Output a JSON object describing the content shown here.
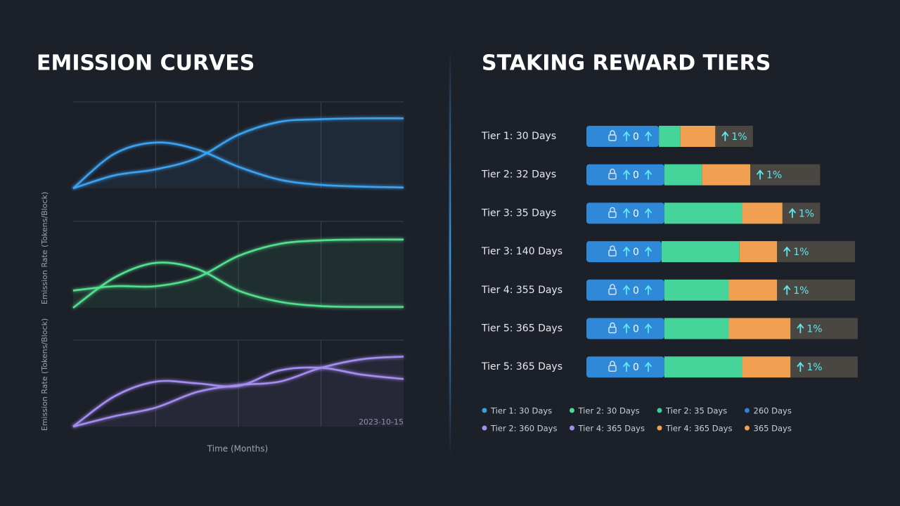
{
  "chart_data": [
    {
      "type": "line",
      "title": "EMISSION CURVES",
      "y_labels": [
        "Emission Rate (Tokens/Block)",
        "Emission Rate (Tokens/Block)"
      ],
      "x_label": "Time (Months)",
      "annotation": "2023-10-15",
      "x": [
        0,
        0.5,
        1,
        1.5,
        2,
        2.5,
        3,
        3.5,
        4
      ],
      "xlim": [
        0,
        4
      ],
      "xticks": [
        1,
        2,
        3
      ],
      "ylim": [
        0,
        1
      ],
      "grid": true,
      "panels": [
        {
          "series": [
            {
              "color": "#3aa2f0",
              "values": [
                0,
                0.4,
                0.53,
                0.45,
                0.25,
                0.1,
                0.04,
                0.02,
                0.01
              ]
            },
            {
              "color": "#3aa2f0",
              "values": [
                0,
                0.15,
                0.22,
                0.35,
                0.62,
                0.77,
                0.8,
                0.81,
                0.81
              ]
            }
          ]
        },
        {
          "series": [
            {
              "color": "#52e08e",
              "values": [
                0,
                0.35,
                0.52,
                0.45,
                0.2,
                0.07,
                0.02,
                0.01,
                0.01
              ]
            },
            {
              "color": "#52e08e",
              "values": [
                0.2,
                0.25,
                0.25,
                0.35,
                0.6,
                0.74,
                0.78,
                0.79,
                0.79
              ]
            }
          ]
        },
        {
          "series": [
            {
              "color": "#a58cf0",
              "values": [
                0,
                0.35,
                0.52,
                0.5,
                0.47,
                0.65,
                0.68,
                0.6,
                0.55
              ]
            },
            {
              "color": "#a58cf0",
              "values": [
                0,
                0.12,
                0.22,
                0.4,
                0.48,
                0.52,
                0.68,
                0.78,
                0.81
              ]
            }
          ]
        }
      ]
    },
    {
      "type": "bar",
      "title": "STAKING REWARD TIERS",
      "categories": [
        "Tier 1: 30 Days",
        "Tier 2: 32 Days",
        "Tier 3: 35 Days",
        "Tier 3: 140 Days",
        "Tier 4: 355 Days",
        "Tier 5: 365 Days",
        "Tier 5: 365 Days"
      ],
      "xlim": [
        0,
        100
      ],
      "series": [
        {
          "color": "#2f88d8",
          "values": [
            27,
            29,
            29,
            28,
            29,
            29,
            29
          ]
        },
        {
          "color": "#45d49a",
          "values": [
            8,
            14,
            29,
            29,
            24,
            24,
            29
          ]
        },
        {
          "color": "#f0a050",
          "values": [
            13,
            18,
            15,
            14,
            18,
            23,
            18
          ]
        },
        {
          "color": "#4a4642",
          "values": [
            14,
            26,
            14,
            29,
            29,
            25,
            25
          ]
        }
      ],
      "inner_labels": [
        "0",
        "0",
        "0",
        "0",
        "0",
        "0",
        "0"
      ],
      "outer_labels": [
        "1%",
        "1%",
        "1%",
        "1%",
        "1%",
        "1%",
        "1%"
      ],
      "legend": [
        {
          "label": "Tier 1: 30 Days",
          "color": "#3b9be0"
        },
        {
          "label": "Tier 2: 30 Days",
          "color": "#4cd990"
        },
        {
          "label": "Tier 2: 35 Days",
          "color": "#3ecf9a"
        },
        {
          "label": "260 Days",
          "color": "#2f7fd6"
        },
        {
          "label": "Tier 2: 360 Days",
          "color": "#a58cf0"
        },
        {
          "label": "Tier 4: 365 Days",
          "color": "#a58cf0"
        },
        {
          "label": "Tier 4: 365 Days",
          "color": "#f0a050"
        },
        {
          "label": "365 Days",
          "color": "#f0a050"
        }
      ]
    }
  ]
}
